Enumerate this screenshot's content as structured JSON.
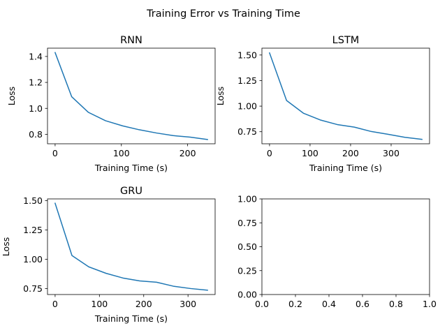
{
  "figure": {
    "suptitle": "Training Error vs Training Time"
  },
  "colors": {
    "line": "#1f77b4",
    "axes": "#000000",
    "background": "#ffffff"
  },
  "chart_data": [
    {
      "type": "line",
      "title": "RNN",
      "xlabel": "Training Time (s)",
      "ylabel": "Loss",
      "xlim": [
        -11.5,
        241.5
      ],
      "ylim": [
        0.727,
        1.464
      ],
      "xticks": [
        0,
        100,
        200
      ],
      "xticklabels": [
        "0",
        "100",
        "200"
      ],
      "yticks": [
        0.8,
        1.0,
        1.2,
        1.4
      ],
      "yticklabels": [
        "0.8",
        "1.0",
        "1.2",
        "1.4"
      ],
      "grid": false,
      "series": [
        {
          "x": [
            0,
            25,
            50,
            76,
            102,
            127,
            153,
            178,
            204,
            230
          ],
          "y": [
            1.43,
            1.09,
            0.97,
            0.905,
            0.865,
            0.835,
            0.81,
            0.79,
            0.778,
            0.76
          ]
        }
      ]
    },
    {
      "type": "line",
      "title": "LSTM",
      "xlabel": "Training Time (s)",
      "ylabel": "Loss",
      "xlim": [
        -18.8,
        394.8
      ],
      "ylim": [
        0.632,
        1.567
      ],
      "xticks": [
        0,
        100,
        200,
        300
      ],
      "xticklabels": [
        "0",
        "100",
        "200",
        "300"
      ],
      "yticks": [
        0.75,
        1.0,
        1.25,
        1.5
      ],
      "yticklabels": [
        "0.75",
        "1.00",
        "1.25",
        "1.50"
      ],
      "grid": false,
      "series": [
        {
          "x": [
            0,
            42,
            84,
            125,
            167,
            209,
            251,
            292,
            334,
            376
          ],
          "y": [
            1.52,
            1.055,
            0.93,
            0.865,
            0.82,
            0.795,
            0.752,
            0.725,
            0.695,
            0.675
          ]
        }
      ]
    },
    {
      "type": "line",
      "title": "GRU",
      "xlabel": "Training Time (s)",
      "ylabel": "Loss",
      "xlim": [
        -17.2,
        361.2
      ],
      "ylim": [
        0.699,
        1.515
      ],
      "xticks": [
        0,
        100,
        200,
        300
      ],
      "xticklabels": [
        "0",
        "100",
        "200",
        "300"
      ],
      "yticks": [
        0.75,
        1.0,
        1.25,
        1.5
      ],
      "yticklabels": [
        "0.75",
        "1.00",
        "1.25",
        "1.50"
      ],
      "grid": false,
      "series": [
        {
          "x": [
            0,
            38,
            76,
            115,
            153,
            191,
            229,
            267,
            306,
            344
          ],
          "y": [
            1.478,
            1.032,
            0.935,
            0.88,
            0.84,
            0.815,
            0.804,
            0.77,
            0.75,
            0.736
          ]
        }
      ]
    },
    {
      "type": "line",
      "title": "",
      "xlabel": "",
      "ylabel": "",
      "xlim": [
        0,
        1
      ],
      "ylim": [
        0,
        1
      ],
      "xticks": [
        0,
        0.2,
        0.4,
        0.6,
        0.8,
        1.0
      ],
      "xticklabels": [
        "0.0",
        "0.2",
        "0.4",
        "0.6",
        "0.8",
        "1.0"
      ],
      "yticks": [
        0,
        0.25,
        0.5,
        0.75,
        1.0
      ],
      "yticklabels": [
        "0.00",
        "0.25",
        "0.50",
        "0.75",
        "1.00"
      ],
      "grid": false,
      "series": []
    }
  ]
}
